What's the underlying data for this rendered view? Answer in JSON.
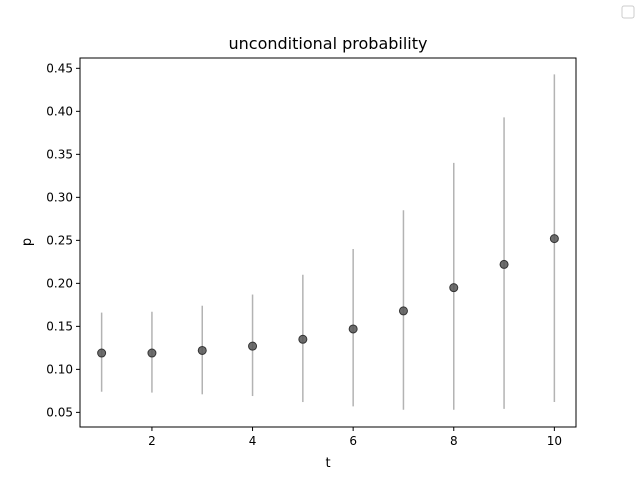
{
  "chart_data": {
    "type": "scatter",
    "title": "unconditional probability",
    "xlabel": "t",
    "ylabel": "p",
    "xlim": [
      0.57,
      10.43
    ],
    "ylim": [
      0.033,
      0.462
    ],
    "xticks": [
      2,
      4,
      6,
      8,
      10
    ],
    "yticks": [
      0.05,
      0.1,
      0.15,
      0.2,
      0.25,
      0.3,
      0.35,
      0.4,
      0.45
    ],
    "ytick_labels": [
      "0.05",
      "0.10",
      "0.15",
      "0.20",
      "0.25",
      "0.30",
      "0.35",
      "0.40",
      "0.45"
    ],
    "grid": false,
    "legend": "top-right (empty)",
    "series": [
      {
        "x": [
          1,
          2,
          3,
          4,
          5,
          6,
          7,
          8,
          9,
          10
        ],
        "y": [
          0.119,
          0.119,
          0.122,
          0.127,
          0.135,
          0.147,
          0.168,
          0.195,
          0.222,
          0.252
        ],
        "y_low": [
          0.074,
          0.073,
          0.071,
          0.069,
          0.062,
          0.057,
          0.053,
          0.053,
          0.054,
          0.062
        ],
        "y_high": [
          0.166,
          0.167,
          0.174,
          0.187,
          0.21,
          0.24,
          0.285,
          0.34,
          0.393,
          0.443
        ],
        "marker_color": "#555555",
        "errorbar_color": "#b3b3b3"
      }
    ]
  }
}
